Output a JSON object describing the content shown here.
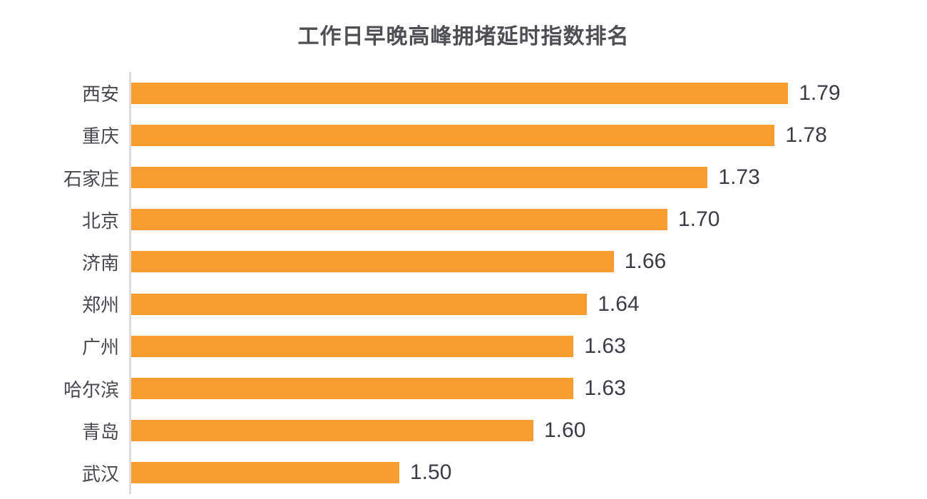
{
  "title": "工作日早晚高峰拥堵延时指数排名",
  "colors": {
    "bar": "#fa9d30",
    "axis_line": "#dcdcdc",
    "title_text": "#4e4f53",
    "category_text": "#47484e",
    "value_text": "#3b3c45"
  },
  "chart_data": {
    "type": "bar",
    "orientation": "horizontal",
    "title": "工作日早晚高峰拥堵延时指数排名",
    "categories": [
      "西安",
      "重庆",
      "石家庄",
      "北京",
      "济南",
      "郑州",
      "广州",
      "哈尔滨",
      "青岛",
      "武汉"
    ],
    "values": [
      1.79,
      1.78,
      1.73,
      1.7,
      1.66,
      1.64,
      1.63,
      1.63,
      1.6,
      1.5
    ],
    "value_labels": [
      "1.79",
      "1.78",
      "1.73",
      "1.70",
      "1.66",
      "1.64",
      "1.63",
      "1.63",
      "1.60",
      "1.50"
    ],
    "xlabel": "",
    "ylabel": "",
    "xlim": [
      1.3,
      1.89
    ],
    "grid": false,
    "legend": false,
    "data_labels_position": "outside-end",
    "bar_color": "#fa9d30"
  }
}
